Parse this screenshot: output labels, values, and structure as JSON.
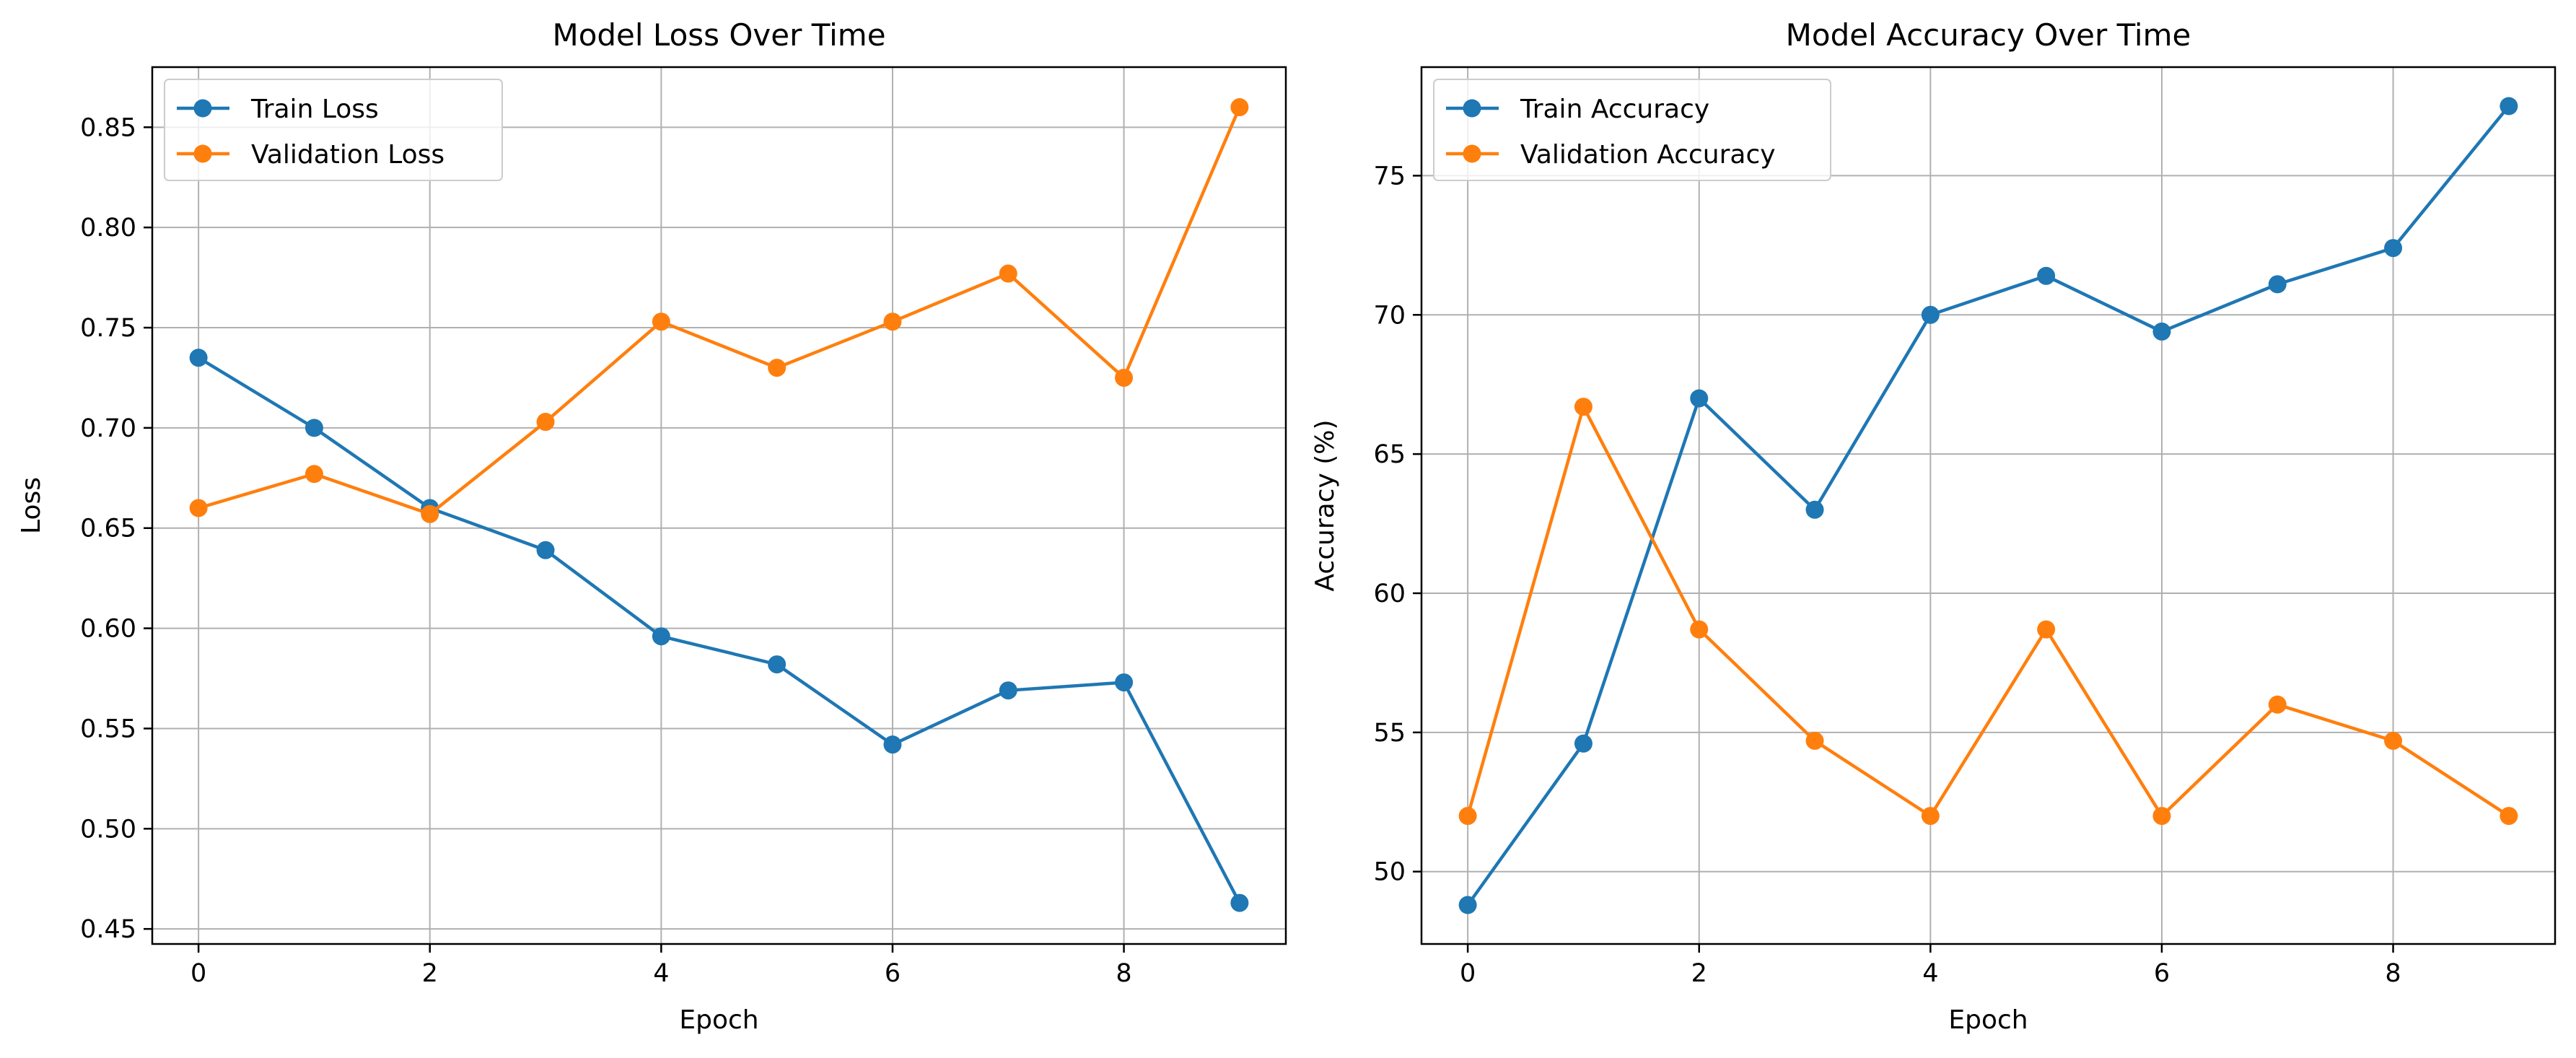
{
  "chart_data": [
    {
      "type": "line",
      "title": "Model Loss Over Time",
      "xlabel": "Epoch",
      "ylabel": "Loss",
      "xlim": [
        -0.4,
        9.4
      ],
      "ylim": [
        0.4425,
        0.88
      ],
      "x_ticks": [
        0,
        2,
        4,
        6,
        8
      ],
      "y_ticks": [
        0.45,
        0.5,
        0.55,
        0.6,
        0.65,
        0.7,
        0.75,
        0.8,
        0.85
      ],
      "y_tick_labels": [
        "0.45",
        "0.50",
        "0.55",
        "0.60",
        "0.65",
        "0.70",
        "0.75",
        "0.80",
        "0.85"
      ],
      "grid": true,
      "legend_position": "upper-left",
      "x": [
        0,
        1,
        2,
        3,
        4,
        5,
        6,
        7,
        8,
        9
      ],
      "series": [
        {
          "name": "Train Loss",
          "color": "#1f77b4",
          "values": [
            0.735,
            0.7,
            0.66,
            0.639,
            0.596,
            0.582,
            0.542,
            0.569,
            0.573,
            0.463
          ]
        },
        {
          "name": "Validation Loss",
          "color": "#ff7f0e",
          "values": [
            0.66,
            0.677,
            0.657,
            0.703,
            0.753,
            0.73,
            0.753,
            0.777,
            0.725,
            0.86
          ]
        }
      ]
    },
    {
      "type": "line",
      "title": "Model Accuracy Over Time",
      "xlabel": "Epoch",
      "ylabel": "Accuracy (%)",
      "xlim": [
        -0.4,
        9.4
      ],
      "ylim": [
        47.4,
        78.9
      ],
      "x_ticks": [
        0,
        2,
        4,
        6,
        8
      ],
      "y_ticks": [
        50,
        55,
        60,
        65,
        70,
        75
      ],
      "y_tick_labels": [
        "50",
        "55",
        "60",
        "65",
        "70",
        "75"
      ],
      "grid": true,
      "legend_position": "upper-left",
      "x": [
        0,
        1,
        2,
        3,
        4,
        5,
        6,
        7,
        8,
        9
      ],
      "series": [
        {
          "name": "Train Accuracy",
          "color": "#1f77b4",
          "values": [
            48.8,
            54.6,
            67.0,
            63.0,
            70.0,
            71.4,
            69.4,
            71.1,
            72.4,
            77.5
          ]
        },
        {
          "name": "Validation Accuracy",
          "color": "#ff7f0e",
          "values": [
            52.0,
            66.7,
            58.7,
            54.7,
            52.0,
            58.7,
            52.0,
            56.0,
            54.7,
            52.0
          ]
        }
      ]
    }
  ]
}
